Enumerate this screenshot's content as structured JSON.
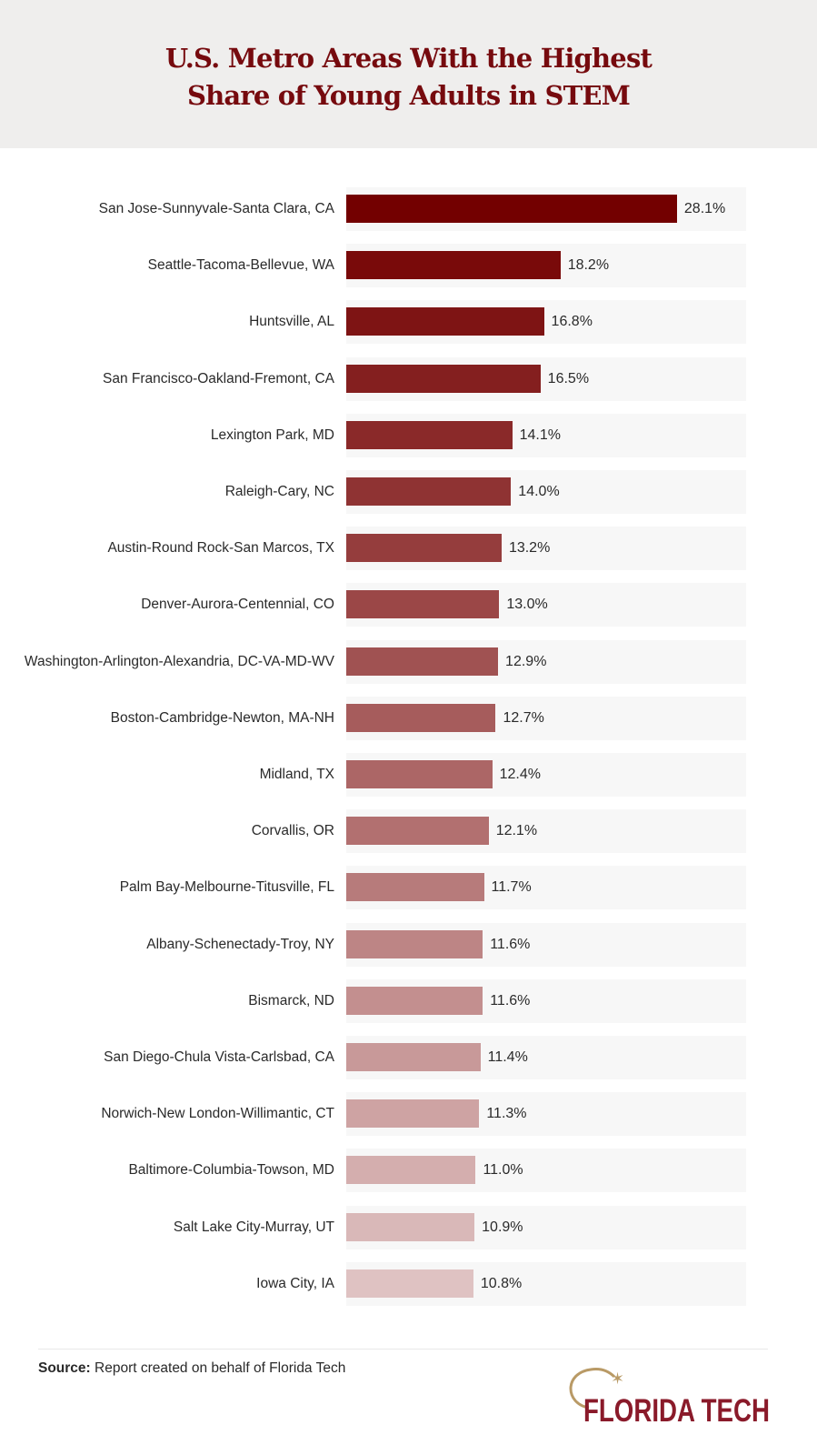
{
  "title_line1": "U.S. Metro Areas With the Highest",
  "title_line2": "Share of Young Adults in STEM",
  "chart_data": {
    "type": "bar",
    "orientation": "horizontal",
    "title": "U.S. Metro Areas With the Highest Share of Young Adults in STEM",
    "categories": [
      "San Jose-Sunnyvale-Santa Clara, CA",
      "Seattle-Tacoma-Bellevue, WA",
      "Huntsville, AL",
      "San Francisco-Oakland-Fremont, CA",
      "Lexington Park, MD",
      "Raleigh-Cary, NC",
      "Austin-Round Rock-San Marcos, TX",
      "Denver-Aurora-Centennial, CO",
      "Washington-Arlington-Alexandria, DC-VA-MD-WV",
      "Boston-Cambridge-Newton, MA-NH",
      "Midland, TX",
      "Corvallis, OR",
      "Palm Bay-Melbourne-Titusville, FL",
      "Albany-Schenectady-Troy, NY",
      "Bismarck, ND",
      "San Diego-Chula Vista-Carlsbad, CA",
      "Norwich-New London-Willimantic, CT",
      "Baltimore-Columbia-Towson, MD",
      "Salt Lake City-Murray, UT",
      "Iowa City, IA"
    ],
    "values": [
      28.1,
      18.2,
      16.8,
      16.5,
      14.1,
      14.0,
      13.2,
      13.0,
      12.9,
      12.7,
      12.4,
      12.1,
      11.7,
      11.6,
      11.6,
      11.4,
      11.3,
      11.0,
      10.9,
      10.8
    ],
    "labels": [
      "28.1%",
      "18.2%",
      "16.8%",
      "16.5%",
      "14.1%",
      "14.0%",
      "13.2%",
      "13.0%",
      "12.9%",
      "12.7%",
      "12.4%",
      "12.1%",
      "11.7%",
      "11.6%",
      "11.6%",
      "11.4%",
      "11.3%",
      "11.0%",
      "10.9%",
      "10.8%"
    ],
    "unit": "%",
    "xlim": [
      0,
      34
    ],
    "grid": false,
    "color_start": "#730000",
    "color_end": "#dfc2c2"
  },
  "footer": {
    "source_label": "Source:",
    "source_text": " Report created on behalf of Florida Tech",
    "logo_text": "FLORIDA TECH"
  }
}
